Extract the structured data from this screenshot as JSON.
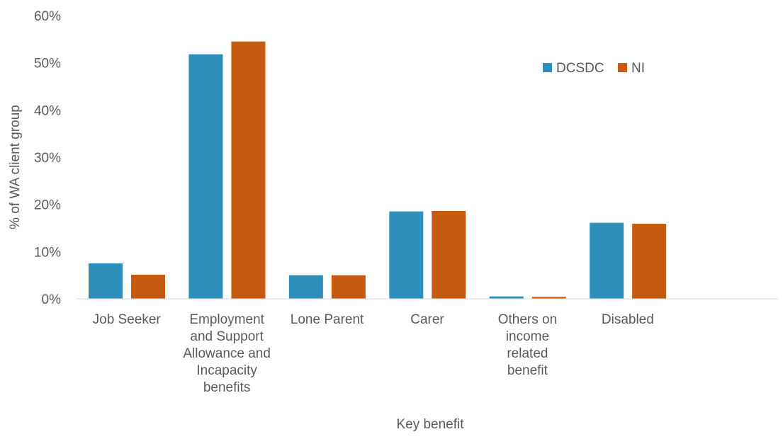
{
  "chart_data": {
    "type": "bar",
    "title": "",
    "xlabel": "Key benefit",
    "ylabel": "% of  WA client group",
    "ylim": [
      0,
      60
    ],
    "yticks": [
      0,
      10,
      20,
      30,
      40,
      50,
      60
    ],
    "ytick_labels": [
      "0%",
      "10%",
      "20%",
      "30%",
      "40%",
      "50%",
      "60%"
    ],
    "grid": false,
    "legend_position": "top-right",
    "categories": [
      [
        "Job Seeker"
      ],
      [
        "Employment",
        "and Support",
        "Allowance and",
        "Incapacity",
        "benefits"
      ],
      [
        "Lone Parent"
      ],
      [
        "Carer"
      ],
      [
        "Others on",
        "income",
        "related",
        "benefit"
      ],
      [
        "Disabled"
      ],
      []
    ],
    "series": [
      {
        "name": "DCSDC",
        "color": "#2e8fba",
        "values": [
          7.5,
          51.8,
          5.0,
          18.5,
          0.5,
          16.1,
          null
        ]
      },
      {
        "name": "NI",
        "color": "#c55a11",
        "values": [
          5.1,
          54.5,
          5.0,
          18.6,
          0.4,
          15.9,
          null
        ]
      }
    ]
  }
}
